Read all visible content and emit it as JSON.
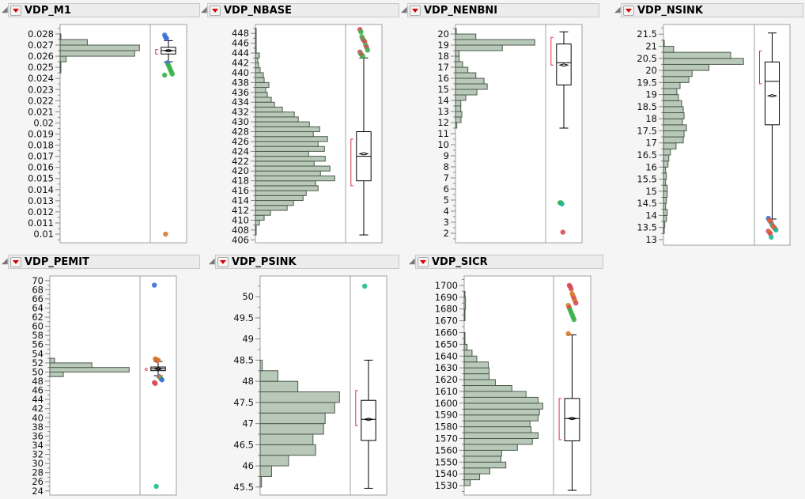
{
  "colors": {
    "bar_fill": "#b9c9b9",
    "bar_stroke": "#4b5a4b",
    "frame": "#a0a0a0",
    "bracket": "#e0304a",
    "blue": "#3b6fd8",
    "green": "#3ab14a",
    "red": "#d94a5a",
    "orange": "#d47a2a",
    "teal": "#20b890"
  },
  "chart_data": [
    {
      "type": "bar",
      "orientation": "horizontal-histogram",
      "title": "VDP_M1",
      "ylim": [
        0.00922,
        0.02885
      ],
      "ticks": [
        "0.01",
        "0.011",
        "0.012",
        "0.013",
        "0.014",
        "0.015",
        "0.016",
        "0.017",
        "0.018",
        "0.019",
        "0.02",
        "0.021",
        "0.022",
        "0.023",
        "0.024",
        "0.025",
        "0.026",
        "0.027",
        "0.028"
      ],
      "bins": [
        [
          0.0245,
          0.0255,
          1
        ],
        [
          0.0255,
          0.026,
          23
        ],
        [
          0.026,
          0.0265,
          282
        ],
        [
          0.0265,
          0.027,
          300
        ],
        [
          0.027,
          0.0275,
          103
        ],
        [
          0.0275,
          0.028,
          1
        ]
      ],
      "box": {
        "whisker_low": 0.0255,
        "q1": 0.0262,
        "median": 0.0265,
        "q3": 0.0268,
        "whisker_high": 0.0274,
        "mean": 0.0265
      },
      "shortest_half": [
        0.0262,
        0.0266
      ],
      "outliers": [
        [
          0.0279,
          "blue"
        ],
        [
          0.0277,
          "blue"
        ],
        [
          0.0276,
          "blue"
        ],
        [
          0.0254,
          "blue"
        ],
        [
          0.0252,
          "green"
        ],
        [
          0.025,
          "green"
        ],
        [
          0.0248,
          "green"
        ],
        [
          0.0246,
          "green"
        ],
        [
          0.0244,
          "green"
        ],
        [
          0.0243,
          "green"
        ],
        [
          0.01,
          "orange"
        ]
      ]
    },
    {
      "type": "bar",
      "orientation": "horizontal-histogram",
      "title": "VDP_NBASE",
      "ylim": [
        405.4,
        449.8
      ],
      "ticks": [
        "406",
        "408",
        "410",
        "412",
        "414",
        "416",
        "418",
        "420",
        "422",
        "424",
        "426",
        "428",
        "430",
        "432",
        "434",
        "436",
        "438",
        "440",
        "442",
        "444",
        "446",
        "448"
      ],
      "bins": [
        [
          407,
          408,
          1
        ],
        [
          408,
          409,
          1
        ],
        [
          409,
          410,
          5
        ],
        [
          410,
          411,
          11
        ],
        [
          411,
          412,
          19
        ],
        [
          412,
          413,
          40
        ],
        [
          413,
          414,
          48
        ],
        [
          414,
          415,
          60
        ],
        [
          415,
          416,
          64
        ],
        [
          416,
          417,
          79
        ],
        [
          417,
          418,
          76
        ],
        [
          418,
          419,
          100
        ],
        [
          419,
          420,
          82
        ],
        [
          420,
          421,
          94
        ],
        [
          421,
          422,
          74
        ],
        [
          422,
          423,
          88
        ],
        [
          423,
          424,
          67
        ],
        [
          424,
          425,
          87
        ],
        [
          425,
          426,
          79
        ],
        [
          426,
          427,
          91
        ],
        [
          427,
          428,
          73
        ],
        [
          428,
          429,
          81
        ],
        [
          429,
          430,
          68
        ],
        [
          430,
          431,
          54
        ],
        [
          431,
          432,
          49
        ],
        [
          432,
          433,
          34
        ],
        [
          433,
          434,
          24
        ],
        [
          434,
          435,
          20
        ],
        [
          435,
          436,
          15
        ],
        [
          436,
          437,
          13
        ],
        [
          437,
          438,
          17
        ],
        [
          438,
          439,
          11
        ],
        [
          439,
          440,
          10
        ],
        [
          440,
          441,
          6
        ],
        [
          441,
          442,
          4
        ],
        [
          442,
          443,
          3
        ],
        [
          443,
          444,
          5
        ],
        [
          444,
          449,
          0.5
        ]
      ],
      "box": {
        "whisker_low": 407,
        "q1": 418,
        "median": 423,
        "q3": 428,
        "whisker_high": 443,
        "mean": 423.5
      },
      "shortest_half": [
        417,
        426.5
      ],
      "outliers": [
        [
          448.8,
          "red"
        ],
        [
          448.3,
          "green"
        ],
        [
          447.3,
          "green"
        ],
        [
          446.8,
          "red"
        ],
        [
          446.6,
          "green"
        ],
        [
          446.3,
          "red"
        ],
        [
          445.6,
          "green"
        ],
        [
          445.2,
          "red"
        ],
        [
          444.6,
          "green"
        ],
        [
          444.2,
          "red"
        ],
        [
          443.8,
          "green"
        ],
        [
          443.6,
          "red"
        ],
        [
          443.3,
          "green"
        ]
      ]
    },
    {
      "type": "bar",
      "orientation": "horizontal-histogram",
      "title": "VDP_NENBNI",
      "ylim": [
        1.14,
        20.86
      ],
      "ticks": [
        "2",
        "3",
        "4",
        "5",
        "6",
        "7",
        "8",
        "9",
        "10",
        "11",
        "12",
        "13",
        "14",
        "15",
        "16",
        "17",
        "18",
        "19",
        "20"
      ],
      "bins": [
        [
          11.5,
          12,
          5
        ],
        [
          12,
          12.5,
          21
        ],
        [
          12.5,
          13,
          24
        ],
        [
          13,
          13.5,
          20
        ],
        [
          13.5,
          14,
          20
        ],
        [
          14,
          14.5,
          39
        ],
        [
          14.5,
          15,
          81
        ],
        [
          15,
          15.5,
          120
        ],
        [
          15.5,
          16,
          108
        ],
        [
          16,
          16.5,
          77
        ],
        [
          16.5,
          17,
          47
        ],
        [
          17,
          17.5,
          27
        ],
        [
          17.5,
          18,
          14
        ],
        [
          18,
          18.5,
          14
        ],
        [
          18.5,
          19,
          177
        ],
        [
          19,
          19.5,
          300
        ],
        [
          19.5,
          20,
          77
        ],
        [
          20,
          20.5,
          2
        ]
      ],
      "box": {
        "whisker_low": 11.5,
        "q1": 15.4,
        "median": 17.4,
        "q3": 19.1,
        "whisker_high": 20.2,
        "mean": 17.2
      },
      "shortest_half": [
        17.2,
        19.7
      ],
      "outliers": [
        [
          4.75,
          "green"
        ],
        [
          4.75,
          "green"
        ],
        [
          4.65,
          "teal"
        ],
        [
          2.1,
          "red"
        ]
      ]
    },
    {
      "type": "bar",
      "orientation": "horizontal-histogram",
      "title": "VDP_NSINK",
      "ylim": [
        12.77,
        21.9
      ],
      "ticks": [
        "13",
        "13.5",
        "14",
        "14.5",
        "15",
        "15.5",
        "16",
        "16.5",
        "17",
        "17.5",
        "18",
        "18.5",
        "19",
        "19.5",
        "20",
        "20.5",
        "21",
        "21.5"
      ],
      "bins": [
        [
          13.25,
          13.5,
          2
        ],
        [
          13.5,
          13.75,
          5
        ],
        [
          13.75,
          14,
          11
        ],
        [
          14,
          14.25,
          14
        ],
        [
          14.25,
          14.5,
          8
        ],
        [
          14.5,
          14.75,
          11
        ],
        [
          14.75,
          15,
          14
        ],
        [
          15,
          15.25,
          14
        ],
        [
          15.25,
          15.5,
          8
        ],
        [
          15.5,
          15.75,
          11
        ],
        [
          15.75,
          16,
          8
        ],
        [
          16,
          16.25,
          17
        ],
        [
          16.25,
          16.5,
          20
        ],
        [
          16.5,
          16.75,
          26
        ],
        [
          16.75,
          17,
          47
        ],
        [
          17,
          17.25,
          74
        ],
        [
          17.25,
          17.5,
          77
        ],
        [
          17.5,
          17.75,
          86
        ],
        [
          17.75,
          18,
          71
        ],
        [
          18,
          18.25,
          77
        ],
        [
          18.25,
          18.5,
          74
        ],
        [
          18.5,
          18.75,
          68
        ],
        [
          18.75,
          19,
          56
        ],
        [
          19,
          19.25,
          50
        ],
        [
          19.25,
          19.5,
          62
        ],
        [
          19.5,
          19.75,
          95
        ],
        [
          19.75,
          20,
          107
        ],
        [
          20,
          20.25,
          170
        ],
        [
          20.25,
          20.5,
          299
        ],
        [
          20.5,
          20.75,
          251
        ],
        [
          20.75,
          21,
          38
        ],
        [
          21,
          21.25,
          3
        ]
      ],
      "box": {
        "whisker_low": 13.85,
        "q1": 17.75,
        "median": 19.55,
        "q3": 20.35,
        "whisker_high": 21.55,
        "mean": 18.95
      },
      "shortest_half": [
        19.45,
        20.8
      ],
      "outliers": [
        [
          13.88,
          "blue"
        ],
        [
          13.8,
          "red"
        ],
        [
          13.75,
          "orange"
        ],
        [
          13.7,
          "red"
        ],
        [
          13.6,
          "teal"
        ],
        [
          13.55,
          "red"
        ],
        [
          13.5,
          "orange"
        ],
        [
          13.45,
          "red"
        ],
        [
          13.4,
          "teal"
        ],
        [
          13.35,
          "red"
        ],
        [
          13.3,
          "orange"
        ],
        [
          13.25,
          "red"
        ],
        [
          13.1,
          "teal"
        ]
      ]
    },
    {
      "type": "bar",
      "orientation": "horizontal-histogram",
      "title": "VDP_PEMIT",
      "ylim": [
        23.1,
        71.0
      ],
      "ticks": [
        "24",
        "26",
        "28",
        "30",
        "32",
        "34",
        "36",
        "38",
        "40",
        "42",
        "44",
        "46",
        "48",
        "50",
        "52",
        "54",
        "56",
        "58",
        "60",
        "62",
        "64",
        "66",
        "68",
        "70"
      ],
      "bins": [
        [
          49,
          50,
          17
        ],
        [
          50,
          51,
          100
        ],
        [
          51,
          52,
          53
        ],
        [
          52,
          53,
          6
        ]
      ],
      "box": {
        "whisker_low": 49.2,
        "q1": 50.3,
        "median": 50.7,
        "q3": 51.1,
        "whisker_high": 52.3,
        "mean": 50.7
      },
      "shortest_half": [
        50.4,
        50.8
      ],
      "outliers": [
        [
          69,
          "blue"
        ],
        [
          52.9,
          "orange"
        ],
        [
          52.7,
          "orange"
        ],
        [
          52.5,
          "red"
        ],
        [
          52.6,
          "orange"
        ],
        [
          49,
          "blue"
        ],
        [
          48.9,
          "orange"
        ],
        [
          48.5,
          "green"
        ],
        [
          48.3,
          "blue"
        ],
        [
          47.7,
          "red"
        ],
        [
          47.5,
          "red"
        ],
        [
          25,
          "teal"
        ]
      ]
    },
    {
      "type": "bar",
      "orientation": "horizontal-histogram",
      "title": "VDP_PSINK",
      "ylim": [
        45.31,
        50.49
      ],
      "ticks": [
        "45.5",
        "46",
        "46.5",
        "47",
        "47.5",
        "48",
        "48.5",
        "49",
        "49.5",
        "50"
      ],
      "bins": [
        [
          45.5,
          45.75,
          5
        ],
        [
          45.75,
          46,
          43
        ],
        [
          46,
          46.25,
          107
        ],
        [
          46.25,
          46.5,
          209
        ],
        [
          46.5,
          46.75,
          199
        ],
        [
          46.75,
          47,
          239
        ],
        [
          47,
          47.25,
          245
        ],
        [
          47.25,
          47.5,
          281
        ],
        [
          47.5,
          47.75,
          299
        ],
        [
          47.75,
          48,
          142
        ],
        [
          48,
          48.25,
          67
        ],
        [
          48.25,
          48.5,
          8
        ]
      ],
      "box": {
        "whisker_low": 45.47,
        "q1": 46.6,
        "median": 47.1,
        "q3": 47.55,
        "whisker_high": 48.5,
        "mean": 47.1
      },
      "shortest_half": [
        46.95,
        47.78
      ],
      "outliers": [
        [
          50.25,
          "teal"
        ]
      ]
    },
    {
      "type": "bar",
      "orientation": "horizontal-histogram",
      "title": "VDP_SICR",
      "ylim": [
        1522,
        1708
      ],
      "ticks": [
        "1530",
        "1540",
        "1550",
        "1560",
        "1570",
        "1580",
        "1590",
        "1600",
        "1610",
        "1620",
        "1630",
        "1640",
        "1650",
        "1660",
        "1670",
        "1680",
        "1690",
        "1700"
      ],
      "bins": [
        [
          1530,
          1535,
          23
        ],
        [
          1535,
          1540,
          59
        ],
        [
          1540,
          1545,
          98
        ],
        [
          1545,
          1550,
          159
        ],
        [
          1550,
          1555,
          140
        ],
        [
          1555,
          1560,
          143
        ],
        [
          1560,
          1565,
          203
        ],
        [
          1565,
          1570,
          260
        ],
        [
          1570,
          1575,
          282
        ],
        [
          1575,
          1580,
          255
        ],
        [
          1580,
          1585,
          251
        ],
        [
          1585,
          1590,
          282
        ],
        [
          1590,
          1595,
          287
        ],
        [
          1595,
          1600,
          300
        ],
        [
          1600,
          1605,
          282
        ],
        [
          1605,
          1610,
          236
        ],
        [
          1610,
          1615,
          182
        ],
        [
          1615,
          1620,
          119
        ],
        [
          1620,
          1625,
          95
        ],
        [
          1625,
          1630,
          95
        ],
        [
          1630,
          1635,
          92
        ],
        [
          1635,
          1640,
          48
        ],
        [
          1640,
          1645,
          30
        ],
        [
          1645,
          1650,
          11
        ],
        [
          1650,
          1660,
          2
        ],
        [
          1670,
          1680,
          2
        ],
        [
          1680,
          1690,
          5
        ],
        [
          1690,
          1695,
          2
        ]
      ],
      "box": {
        "whisker_low": 1526,
        "q1": 1568,
        "median": 1587,
        "q3": 1604,
        "whisker_high": 1658,
        "mean": 1587
      },
      "shortest_half": [
        1569,
        1604
      ],
      "outliers": [
        [
          1659,
          "orange"
        ],
        [
          1700,
          "red"
        ],
        [
          1699,
          "red"
        ],
        [
          1697,
          "red"
        ],
        [
          1693,
          "orange"
        ],
        [
          1691,
          "orange"
        ],
        [
          1689,
          "red"
        ],
        [
          1687,
          "orange"
        ],
        [
          1685,
          "red"
        ],
        [
          1683,
          "orange"
        ],
        [
          1681,
          "red"
        ],
        [
          1679,
          "green"
        ],
        [
          1677,
          "green"
        ],
        [
          1675,
          "green"
        ],
        [
          1673,
          "green"
        ],
        [
          1671,
          "green"
        ]
      ]
    }
  ]
}
